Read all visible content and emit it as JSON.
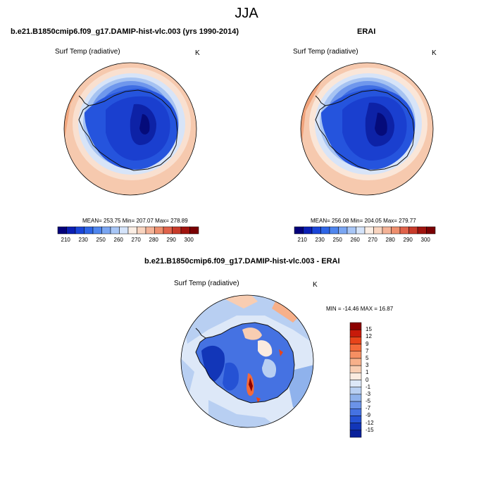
{
  "figure": {
    "season": "JJA"
  },
  "panels": [
    {
      "title": "b.e21.B1850cmip6.f09_g17.DAMIP-hist-vlc.003 (yrs 1990-2014)",
      "variable": "Surf Temp (radiative)",
      "units": "K",
      "stats": "MEAN= 253.75   Min= 207.07   Max= 278.89",
      "colorbar": {
        "labels": [
          "210",
          "230",
          "250",
          "260",
          "270",
          "280",
          "290",
          "300"
        ],
        "colors": [
          "#04007a",
          "#0b1fb4",
          "#1a45d8",
          "#2e65e6",
          "#4f86ee",
          "#7aa6f2",
          "#a8c6f6",
          "#d5e4fa",
          "#fbeee4",
          "#f9d4bf",
          "#f4b397",
          "#ee8f6e",
          "#e0634b",
          "#c83b2a",
          "#a0140f",
          "#7a0003"
        ]
      }
    },
    {
      "title": "ERAI",
      "variable": "Surf Temp (radiative)",
      "units": "K",
      "stats": "MEAN= 256.08   Min= 204.05   Max= 279.77",
      "colorbar": {
        "labels": [
          "210",
          "230",
          "250",
          "260",
          "270",
          "280",
          "290",
          "300"
        ],
        "colors": [
          "#04007a",
          "#0b1fb4",
          "#1a45d8",
          "#2e65e6",
          "#4f86ee",
          "#7aa6f2",
          "#a8c6f6",
          "#d5e4fa",
          "#fbeee4",
          "#f9d4bf",
          "#f4b397",
          "#ee8f6e",
          "#e0634b",
          "#c83b2a",
          "#a0140f",
          "#7a0003"
        ]
      }
    },
    {
      "title": "b.e21.B1850cmip6.f09_g17.DAMIP-hist-vlc.003 - ERAI",
      "variable": "Surf Temp (radiative)",
      "units": "K",
      "stats": "MIN = -14.46 MAX =  16.87",
      "colorbar": {
        "labels": [
          "15",
          "12",
          "9",
          "7",
          "5",
          "3",
          "1",
          "0",
          "-1",
          "-3",
          "-5",
          "-7",
          "-9",
          "-12",
          "-15"
        ],
        "colors": [
          "#8c0000",
          "#c81a0a",
          "#e8441a",
          "#f46a3a",
          "#f68f62",
          "#f7b08a",
          "#f8cdb2",
          "#fbebe0",
          "#dde8f8",
          "#b8cff2",
          "#8fb2ec",
          "#6b93e8",
          "#4572e2",
          "#2552d4",
          "#1236b8",
          "#08209a"
        ]
      }
    }
  ]
}
